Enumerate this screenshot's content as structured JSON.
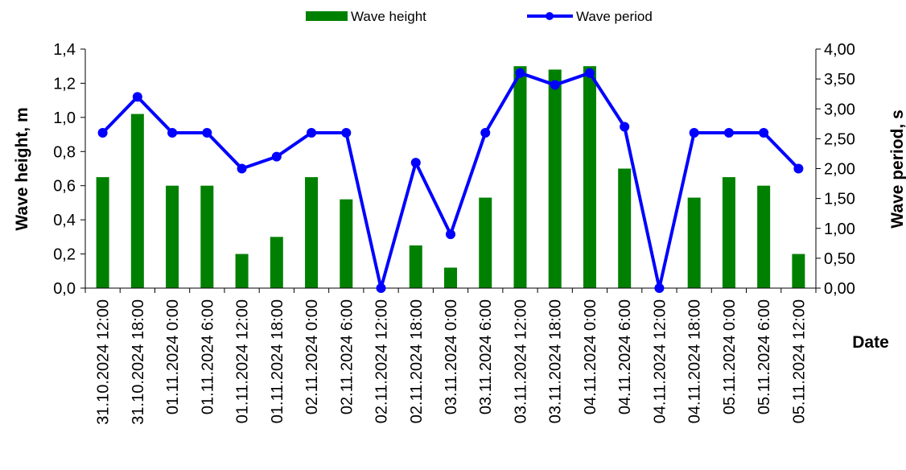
{
  "chart_data": {
    "type": "bar",
    "xlabel": "Date",
    "categories": [
      "31.10.2024 12:00",
      "31.10.2024 18:00",
      "01.11.2024 0:00",
      "01.11.2024 6:00",
      "01.11.2024 12:00",
      "01.11.2024 18:00",
      "02.11.2024 0:00",
      "02.11.2024 6:00",
      "02.11.2024 12:00",
      "02.11.2024 18:00",
      "03.11.2024 0:00",
      "03.11.2024 6:00",
      "03.11.2024 12:00",
      "03.11.2024 18:00",
      "04.11.2024 0:00",
      "04.11.2024 6:00",
      "04.11.2024 12:00",
      "04.11.2024 18:00",
      "05.11.2024 0:00",
      "05.11.2024 6:00",
      "05.11.2024 12:00"
    ],
    "series": [
      {
        "name": "Wave height",
        "type": "bar",
        "axis": "left",
        "color": "#008000",
        "values": [
          0.65,
          1.02,
          0.6,
          0.6,
          0.2,
          0.3,
          0.65,
          0.52,
          0.0,
          0.25,
          0.12,
          0.53,
          1.3,
          1.28,
          1.3,
          0.7,
          0.0,
          0.53,
          0.65,
          0.6,
          0.2
        ]
      },
      {
        "name": "Wave period",
        "type": "line",
        "axis": "right",
        "color": "#0000ff",
        "values": [
          2.6,
          3.2,
          2.6,
          2.6,
          2.0,
          2.2,
          2.6,
          2.6,
          0.0,
          2.1,
          0.9,
          2.6,
          3.6,
          3.4,
          3.6,
          2.7,
          0.0,
          2.6,
          2.6,
          2.6,
          2.0
        ]
      }
    ],
    "y_left": {
      "label": "Wave height, m",
      "ylim": [
        0,
        1.4
      ],
      "ticks": [
        "0,0",
        "0,2",
        "0,4",
        "0,6",
        "0,8",
        "1,0",
        "1,2",
        "1,4"
      ]
    },
    "y_right": {
      "label": "Wave period, s",
      "ylim": [
        0,
        4
      ],
      "ticks": [
        "0,00",
        "0,50",
        "1,00",
        "1,50",
        "2,00",
        "2,50",
        "3,00",
        "3,50",
        "4,00"
      ]
    },
    "grid": false,
    "legend": "top-center"
  }
}
